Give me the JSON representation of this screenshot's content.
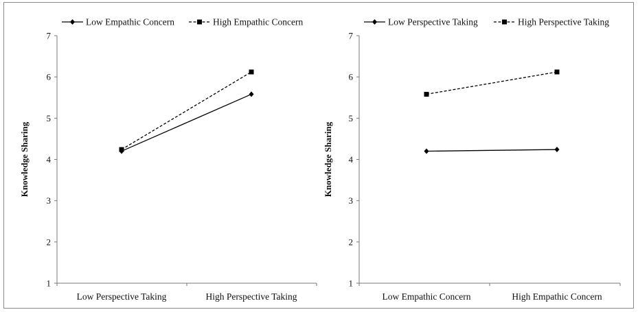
{
  "chart_data": [
    {
      "type": "line",
      "title": "",
      "xlabel": "",
      "ylabel": "Knowledge Sharing",
      "ylim": [
        1,
        7
      ],
      "yticks": [
        1,
        2,
        3,
        4,
        5,
        6,
        7
      ],
      "categories": [
        "Low Perspective Taking",
        "High Perspective Taking"
      ],
      "grid": false,
      "legend": "top",
      "series": [
        {
          "name": "Low Empathic Concern",
          "values": [
            4.2,
            5.58
          ],
          "style": "solid",
          "marker": "diamond",
          "color": "#000000"
        },
        {
          "name": "High Empathic Concern",
          "values": [
            4.24,
            6.12
          ],
          "style": "dashed",
          "marker": "square",
          "color": "#000000"
        }
      ]
    },
    {
      "type": "line",
      "title": "",
      "xlabel": "",
      "ylabel": "Knowledge Sharing",
      "ylim": [
        1,
        7
      ],
      "yticks": [
        1,
        2,
        3,
        4,
        5,
        6,
        7
      ],
      "categories": [
        "Low Empathic Concern",
        "High Empathic Concern"
      ],
      "grid": false,
      "legend": "top",
      "series": [
        {
          "name": "Low Perspective Taking",
          "values": [
            4.2,
            4.24
          ],
          "style": "solid",
          "marker": "diamond",
          "color": "#000000"
        },
        {
          "name": "High Perspective Taking",
          "values": [
            5.58,
            6.12
          ],
          "style": "dashed",
          "marker": "square",
          "color": "#000000"
        }
      ]
    }
  ]
}
